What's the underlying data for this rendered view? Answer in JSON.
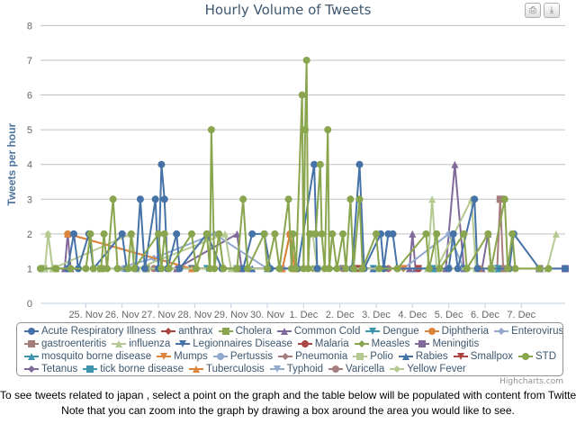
{
  "chart_data": {
    "type": "line",
    "title": "Hourly Volume of Tweets",
    "ylabel": "Tweets per hour",
    "xlabel": "",
    "x_unit": "hours since 25 Nov 00:00",
    "xlim": [
      -30,
      317
    ],
    "ylim": [
      0,
      8
    ],
    "yticks": [
      0,
      1,
      2,
      3,
      4,
      5,
      6,
      7,
      8
    ],
    "xticks": [
      0,
      24,
      48,
      72,
      96,
      120,
      144,
      168,
      192,
      216,
      240,
      264,
      288
    ],
    "xtick_labels": [
      "25. Nov",
      "26. Nov",
      "27. Nov",
      "28. Nov",
      "29. Nov",
      "30. Nov",
      "1. Dec",
      "2. Dec",
      "3. Dec",
      "4. Dec",
      "5. Dec",
      "6. Dec",
      "7. Dec"
    ],
    "grid": true,
    "legend_position": "bottom",
    "series": [
      {
        "name": "Acute Respiratory Illness",
        "color": "#4572A7",
        "marker": "circle",
        "data": [
          [
            -30,
            1
          ],
          [
            -12,
            1
          ],
          [
            -8,
            2
          ],
          [
            -5,
            1
          ],
          [
            2,
            2
          ],
          [
            5,
            1
          ],
          [
            24,
            2
          ],
          [
            27,
            1
          ],
          [
            33,
            1
          ],
          [
            36,
            3
          ],
          [
            39,
            1
          ],
          [
            46,
            3
          ],
          [
            48,
            1
          ],
          [
            50,
            4
          ],
          [
            52,
            3
          ],
          [
            54,
            1
          ],
          [
            60,
            2
          ],
          [
            62,
            1
          ],
          [
            80,
            2
          ],
          [
            90,
            1
          ],
          [
            104,
            1
          ],
          [
            110,
            2
          ],
          [
            118,
            2
          ],
          [
            122,
            1
          ],
          [
            140,
            1
          ],
          [
            151,
            4
          ],
          [
            153,
            1
          ],
          [
            176,
            1
          ],
          [
            181,
            4
          ],
          [
            184,
            1
          ],
          [
            195,
            2
          ],
          [
            197,
            1
          ],
          [
            200,
            2
          ],
          [
            203,
            2
          ],
          [
            206,
            1
          ],
          [
            240,
            1
          ],
          [
            243,
            2
          ],
          [
            246,
            1
          ],
          [
            257,
            3
          ],
          [
            259,
            1
          ],
          [
            280,
            1
          ],
          [
            283,
            2
          ],
          [
            300,
            1
          ],
          [
            317,
            1
          ]
        ]
      },
      {
        "name": "anthrax",
        "color": "#AA4643",
        "marker": "diamond",
        "data": [
          [
            60,
            1
          ],
          [
            150,
            1
          ],
          [
            200,
            1
          ],
          [
            240,
            1
          ]
        ]
      },
      {
        "name": "Cholera",
        "color": "#89A54E",
        "marker": "square",
        "data": [
          [
            -28,
            1
          ],
          [
            -20,
            1
          ],
          [
            10,
            1
          ],
          [
            40,
            1
          ],
          [
            100,
            1
          ],
          [
            180,
            1
          ],
          [
            270,
            1
          ]
        ]
      },
      {
        "name": "Common Cold",
        "color": "#80699B",
        "marker": "triangle",
        "data": [
          [
            -14,
            1
          ],
          [
            -12,
            2
          ],
          [
            -10,
            1
          ],
          [
            60,
            1
          ],
          [
            100,
            2
          ],
          [
            103,
            1
          ],
          [
            214,
            1
          ],
          [
            216,
            2
          ],
          [
            218,
            1
          ],
          [
            238,
            1
          ],
          [
            244,
            4
          ],
          [
            250,
            1
          ],
          [
            262,
            1
          ],
          [
            266,
            2
          ],
          [
            268,
            1
          ]
        ]
      },
      {
        "name": "Dengue",
        "color": "#3D96AE",
        "marker": "triangle-down",
        "data": [
          [
            80,
            1
          ],
          [
            190,
            1
          ],
          [
            230,
            1
          ]
        ]
      },
      {
        "name": "Diphtheria",
        "color": "#DB843D",
        "marker": "circle",
        "data": [
          [
            -12,
            2
          ],
          [
            70,
            1
          ],
          [
            130,
            1
          ],
          [
            135,
            2
          ],
          [
            138,
            1
          ],
          [
            200,
            1
          ],
          [
            260,
            1
          ]
        ]
      },
      {
        "name": "Enterovirus",
        "color": "#92A8CD",
        "marker": "diamond",
        "data": [
          [
            20,
            1
          ],
          [
            45,
            1.3
          ],
          [
            85,
            2
          ],
          [
            120,
            1
          ],
          [
            210,
            1
          ],
          [
            240,
            2
          ],
          [
            250,
            1
          ]
        ]
      },
      {
        "name": "gastroenteritis",
        "color": "#A47D7C",
        "marker": "square",
        "data": [
          [
            272,
            1
          ],
          [
            274,
            3
          ],
          [
            276,
            1
          ]
        ]
      },
      {
        "name": "influenza",
        "color": "#B5CA92",
        "marker": "triangle",
        "data": [
          [
            -27,
            1
          ],
          [
            -25,
            2
          ],
          [
            -22,
            1
          ],
          [
            30,
            2
          ],
          [
            34,
            1
          ],
          [
            92,
            2
          ],
          [
            96,
            1
          ],
          [
            226,
            1
          ],
          [
            229,
            3
          ],
          [
            232,
            1
          ],
          [
            255,
            3
          ],
          [
            258,
            1
          ],
          [
            305,
            1
          ],
          [
            311,
            2
          ]
        ]
      },
      {
        "name": "Legionnaires Disease",
        "color": "#4572A7",
        "marker": "triangle-down",
        "data": [
          [
            70,
            1
          ],
          [
            170,
            1
          ],
          [
            250,
            1
          ]
        ]
      },
      {
        "name": "Malaria",
        "color": "#AA4643",
        "marker": "circle",
        "data": [
          [
            140,
            1
          ],
          [
            220,
            1
          ]
        ]
      },
      {
        "name": "Measles",
        "color": "#89A54E",
        "marker": "diamond",
        "data": [
          [
            50,
            1
          ],
          [
            150,
            1
          ],
          [
            210,
            1
          ]
        ]
      },
      {
        "name": "Meningitis",
        "color": "#80699B",
        "marker": "square",
        "data": [
          [
            300,
            1
          ],
          [
            317,
            1
          ]
        ]
      },
      {
        "name": "mosquito borne disease",
        "color": "#3D96AE",
        "marker": "triangle",
        "data": [
          [
            120,
            1
          ],
          [
            230,
            1
          ]
        ]
      },
      {
        "name": "Mumps",
        "color": "#DB843D",
        "marker": "triangle-down",
        "data": [
          [
            90,
            1
          ],
          [
            210,
            1
          ]
        ]
      },
      {
        "name": "Pertussis",
        "color": "#92A8CD",
        "marker": "circle",
        "data": [
          [
            25,
            1
          ],
          [
            130,
            1
          ]
        ]
      },
      {
        "name": "Pneumonia",
        "color": "#A47D7C",
        "marker": "diamond",
        "data": [
          [
            40,
            1
          ],
          [
            160,
            1
          ]
        ]
      },
      {
        "name": "Polio",
        "color": "#B5CA92",
        "marker": "square",
        "data": [
          [
            150,
            2
          ],
          [
            153,
            1
          ],
          [
            268,
            1
          ],
          [
            270,
            1
          ]
        ]
      },
      {
        "name": "Rabies",
        "color": "#4572A7",
        "marker": "triangle",
        "data": [
          [
            110,
            1
          ],
          [
            190,
            1
          ]
        ]
      },
      {
        "name": "Smallpox",
        "color": "#AA4643",
        "marker": "triangle-down",
        "data": [
          [
            180,
            1
          ],
          [
            220,
            1
          ]
        ]
      },
      {
        "name": "STD",
        "color": "#89A54E",
        "marker": "circle",
        "data": [
          [
            -30,
            1
          ],
          [
            -20,
            1
          ],
          [
            -10,
            1
          ],
          [
            0,
            1
          ],
          [
            3,
            2
          ],
          [
            5,
            1
          ],
          [
            10,
            1
          ],
          [
            12,
            2
          ],
          [
            14,
            1
          ],
          [
            18,
            3
          ],
          [
            21,
            1
          ],
          [
            28,
            1
          ],
          [
            30,
            2
          ],
          [
            32,
            1
          ],
          [
            48,
            2
          ],
          [
            50,
            1
          ],
          [
            52,
            2
          ],
          [
            55,
            1
          ],
          [
            70,
            2
          ],
          [
            73,
            1
          ],
          [
            80,
            2
          ],
          [
            82,
            1
          ],
          [
            83,
            5
          ],
          [
            85,
            1
          ],
          [
            88,
            2
          ],
          [
            91,
            1
          ],
          [
            100,
            1
          ],
          [
            104,
            3
          ],
          [
            107,
            1
          ],
          [
            118,
            2
          ],
          [
            120,
            1
          ],
          [
            125,
            2
          ],
          [
            128,
            1
          ],
          [
            134,
            3
          ],
          [
            136,
            1
          ],
          [
            137,
            2
          ],
          [
            139,
            1
          ],
          [
            143,
            6
          ],
          [
            144,
            1
          ],
          [
            145,
            5
          ],
          [
            146,
            7
          ],
          [
            147,
            1
          ],
          [
            148,
            2
          ],
          [
            152,
            2
          ],
          [
            155,
            4
          ],
          [
            156,
            2
          ],
          [
            158,
            1
          ],
          [
            160,
            5
          ],
          [
            161,
            1
          ],
          [
            163,
            2
          ],
          [
            166,
            1
          ],
          [
            170,
            2
          ],
          [
            172,
            1
          ],
          [
            175,
            3
          ],
          [
            177,
            1
          ],
          [
            181,
            3
          ],
          [
            183,
            1
          ],
          [
            192,
            2
          ],
          [
            194,
            1
          ],
          [
            206,
            1
          ],
          [
            225,
            2
          ],
          [
            227,
            1
          ],
          [
            232,
            2
          ],
          [
            234,
            1
          ],
          [
            250,
            2
          ],
          [
            252,
            1
          ],
          [
            266,
            2
          ],
          [
            268,
            1
          ],
          [
            277,
            3
          ],
          [
            279,
            1
          ],
          [
            282,
            2
          ],
          [
            284,
            1
          ],
          [
            300,
            1
          ],
          [
            306,
            1
          ]
        ]
      },
      {
        "name": "Tetanus",
        "color": "#80699B",
        "marker": "diamond",
        "data": [
          [
            60,
            1
          ],
          [
            200,
            1
          ]
        ]
      },
      {
        "name": "tick borne disease",
        "color": "#3D96AE",
        "marker": "square",
        "data": [
          [
            270,
            1
          ],
          [
            272,
            1
          ]
        ]
      },
      {
        "name": "Tuberculosis",
        "color": "#DB843D",
        "marker": "triangle",
        "data": [
          [
            -12,
            2
          ],
          [
            70,
            1
          ],
          [
            130,
            1
          ],
          [
            135,
            2
          ],
          [
            138,
            1
          ]
        ]
      },
      {
        "name": "Typhoid",
        "color": "#92A8CD",
        "marker": "triangle-down",
        "data": [
          [
            100,
            1
          ],
          [
            240,
            1
          ]
        ]
      },
      {
        "name": "Varicella",
        "color": "#A47D7C",
        "marker": "circle",
        "data": [
          [
            45,
            1
          ],
          [
            170,
            1
          ]
        ]
      },
      {
        "name": "Yellow Fever",
        "color": "#B5CA92",
        "marker": "diamond",
        "data": [
          [
            -25,
            2
          ],
          [
            -22,
            1
          ],
          [
            270,
            1
          ]
        ]
      }
    ]
  },
  "export_buttons": {
    "print": "print-icon",
    "download": "download-icon"
  },
  "credit": "Highcharts.com",
  "notes": [
    "To see tweets related to japan , select a point on the graph and the table below will be populated with content from Twitter.",
    "Note that you can zoom into the graph by drawing a box around the area you would like to see."
  ]
}
